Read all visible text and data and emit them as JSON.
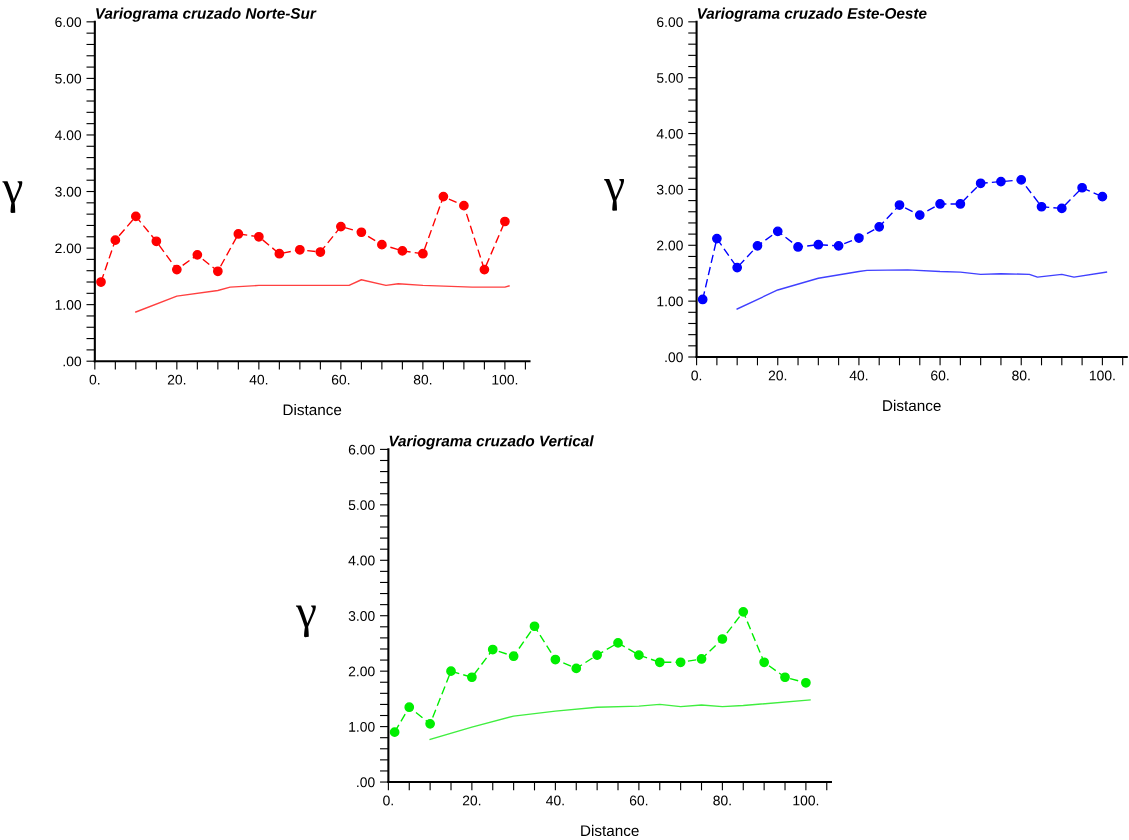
{
  "chart_data": [
    {
      "type": "line",
      "title": "Variograma cruzado Norte-Sur",
      "xlabel": "Distance",
      "ylabel": "γ",
      "xlim": [
        0,
        106
      ],
      "ylim": [
        0,
        6
      ],
      "grid": false,
      "legend": false,
      "xticks": [
        {
          "value": 0,
          "label": "0."
        },
        {
          "value": 5,
          "label": null
        },
        {
          "value": 10,
          "label": null
        },
        {
          "value": 15,
          "label": null
        },
        {
          "value": 20,
          "label": "20."
        },
        {
          "value": 25,
          "label": null
        },
        {
          "value": 30,
          "label": null
        },
        {
          "value": 35,
          "label": null
        },
        {
          "value": 40,
          "label": "40."
        },
        {
          "value": 45,
          "label": null
        },
        {
          "value": 50,
          "label": null
        },
        {
          "value": 55,
          "label": null
        },
        {
          "value": 60,
          "label": "60."
        },
        {
          "value": 65,
          "label": null
        },
        {
          "value": 70,
          "label": null
        },
        {
          "value": 75,
          "label": null
        },
        {
          "value": 80,
          "label": "80."
        },
        {
          "value": 85,
          "label": null
        },
        {
          "value": 90,
          "label": null
        },
        {
          "value": 95,
          "label": null
        },
        {
          "value": 100,
          "label": "100."
        },
        {
          "value": 105,
          "label": null
        }
      ],
      "yticks": [
        {
          "value": 0,
          "label": ".00"
        },
        {
          "value": 0.2,
          "label": null
        },
        {
          "value": 0.4,
          "label": null
        },
        {
          "value": 0.6,
          "label": null
        },
        {
          "value": 0.8,
          "label": null
        },
        {
          "value": 1,
          "label": "1.00"
        },
        {
          "value": 1.2,
          "label": null
        },
        {
          "value": 1.4,
          "label": null
        },
        {
          "value": 1.6,
          "label": null
        },
        {
          "value": 1.8,
          "label": null
        },
        {
          "value": 2,
          "label": "2.00"
        },
        {
          "value": 2.2,
          "label": null
        },
        {
          "value": 2.4,
          "label": null
        },
        {
          "value": 2.6,
          "label": null
        },
        {
          "value": 2.8,
          "label": null
        },
        {
          "value": 3,
          "label": "3.00"
        },
        {
          "value": 3.2,
          "label": null
        },
        {
          "value": 3.4,
          "label": null
        },
        {
          "value": 3.6,
          "label": null
        },
        {
          "value": 3.8,
          "label": null
        },
        {
          "value": 4,
          "label": "4.00"
        },
        {
          "value": 4.2,
          "label": null
        },
        {
          "value": 4.4,
          "label": null
        },
        {
          "value": 4.6,
          "label": null
        },
        {
          "value": 4.8,
          "label": null
        },
        {
          "value": 5,
          "label": "5.00"
        },
        {
          "value": 5.2,
          "label": null
        },
        {
          "value": 5.4,
          "label": null
        },
        {
          "value": 5.6,
          "label": null
        },
        {
          "value": 5.8,
          "label": null
        },
        {
          "value": 6,
          "label": "6.00"
        }
      ],
      "series": [
        {
          "marker": "circle",
          "line_style": "dashed",
          "color": "#ff0000",
          "x": [
            1.5,
            5,
            10,
            15,
            20,
            25,
            30,
            35,
            40,
            45,
            50,
            55,
            60,
            65,
            70,
            75,
            80,
            85,
            90,
            95,
            100
          ],
          "values": [
            1.4,
            2.14,
            2.56,
            2.12,
            1.62,
            1.88,
            1.59,
            2.25,
            2.2,
            1.9,
            1.97,
            1.93,
            2.38,
            2.28,
            2.06,
            1.95,
            1.9,
            2.91,
            2.75,
            1.62,
            2.47
          ]
        },
        {
          "marker": "none",
          "line_style": "solid",
          "color": "#ff4040",
          "x": [
            10,
            20,
            30,
            33,
            40,
            62,
            65,
            71,
            74,
            80,
            92,
            100,
            101
          ],
          "values": [
            0.87,
            1.15,
            1.25,
            1.31,
            1.34,
            1.34,
            1.44,
            1.34,
            1.37,
            1.34,
            1.31,
            1.31,
            1.33
          ]
        }
      ]
    },
    {
      "type": "line",
      "title": "Variograma cruzado Este-Oeste",
      "xlabel": "Distance",
      "ylabel": "γ",
      "xlim": [
        0,
        106
      ],
      "ylim": [
        0,
        6
      ],
      "grid": false,
      "legend": false,
      "xticks": [
        {
          "value": 0,
          "label": "0."
        },
        {
          "value": 5,
          "label": null
        },
        {
          "value": 10,
          "label": null
        },
        {
          "value": 15,
          "label": null
        },
        {
          "value": 20,
          "label": "20."
        },
        {
          "value": 25,
          "label": null
        },
        {
          "value": 30,
          "label": null
        },
        {
          "value": 35,
          "label": null
        },
        {
          "value": 40,
          "label": "40."
        },
        {
          "value": 45,
          "label": null
        },
        {
          "value": 50,
          "label": null
        },
        {
          "value": 55,
          "label": null
        },
        {
          "value": 60,
          "label": "60."
        },
        {
          "value": 65,
          "label": null
        },
        {
          "value": 70,
          "label": null
        },
        {
          "value": 75,
          "label": null
        },
        {
          "value": 80,
          "label": "80."
        },
        {
          "value": 85,
          "label": null
        },
        {
          "value": 90,
          "label": null
        },
        {
          "value": 95,
          "label": null
        },
        {
          "value": 100,
          "label": "100."
        },
        {
          "value": 105,
          "label": null
        }
      ],
      "yticks": [
        {
          "value": 0,
          "label": ".00"
        },
        {
          "value": 0.2,
          "label": null
        },
        {
          "value": 0.4,
          "label": null
        },
        {
          "value": 0.6,
          "label": null
        },
        {
          "value": 0.8,
          "label": null
        },
        {
          "value": 1,
          "label": "1.00"
        },
        {
          "value": 1.2,
          "label": null
        },
        {
          "value": 1.4,
          "label": null
        },
        {
          "value": 1.6,
          "label": null
        },
        {
          "value": 1.8,
          "label": null
        },
        {
          "value": 2,
          "label": "2.00"
        },
        {
          "value": 2.2,
          "label": null
        },
        {
          "value": 2.4,
          "label": null
        },
        {
          "value": 2.6,
          "label": null
        },
        {
          "value": 2.8,
          "label": null
        },
        {
          "value": 3,
          "label": "3.00"
        },
        {
          "value": 3.2,
          "label": null
        },
        {
          "value": 3.4,
          "label": null
        },
        {
          "value": 3.6,
          "label": null
        },
        {
          "value": 3.8,
          "label": null
        },
        {
          "value": 4,
          "label": "4.00"
        },
        {
          "value": 4.2,
          "label": null
        },
        {
          "value": 4.4,
          "label": null
        },
        {
          "value": 4.6,
          "label": null
        },
        {
          "value": 4.8,
          "label": null
        },
        {
          "value": 5,
          "label": "5.00"
        },
        {
          "value": 5.2,
          "label": null
        },
        {
          "value": 5.4,
          "label": null
        },
        {
          "value": 5.6,
          "label": null
        },
        {
          "value": 5.8,
          "label": null
        },
        {
          "value": 6,
          "label": "6.00"
        }
      ],
      "series": [
        {
          "marker": "circle",
          "line_style": "dashed",
          "color": "#0000ff",
          "x": [
            1.5,
            5,
            10,
            15,
            20,
            25,
            30,
            35,
            40,
            45,
            50,
            55,
            60,
            65,
            70,
            75,
            80,
            85,
            90,
            95,
            100
          ],
          "values": [
            1.03,
            2.12,
            1.6,
            1.99,
            2.25,
            1.97,
            2.01,
            1.99,
            2.13,
            2.33,
            2.72,
            2.54,
            2.74,
            2.74,
            3.11,
            3.14,
            3.17,
            2.69,
            2.66,
            3.03,
            2.87
          ]
        },
        {
          "marker": "none",
          "line_style": "solid",
          "color": "#4040ff",
          "x": [
            10,
            20,
            30,
            40,
            42,
            52,
            60,
            65,
            70,
            75,
            82,
            84,
            90,
            93,
            101
          ],
          "values": [
            0.86,
            1.2,
            1.41,
            1.53,
            1.55,
            1.56,
            1.53,
            1.52,
            1.48,
            1.49,
            1.48,
            1.43,
            1.48,
            1.43,
            1.52
          ]
        }
      ]
    },
    {
      "type": "line",
      "title": "Variograma cruzado Vertical",
      "xlabel": "Distance",
      "ylabel": "γ",
      "xlim": [
        0,
        106
      ],
      "ylim": [
        0,
        6
      ],
      "grid": false,
      "legend": false,
      "xticks": [
        {
          "value": 0,
          "label": "0."
        },
        {
          "value": 5,
          "label": null
        },
        {
          "value": 10,
          "label": null
        },
        {
          "value": 15,
          "label": null
        },
        {
          "value": 20,
          "label": "20."
        },
        {
          "value": 25,
          "label": null
        },
        {
          "value": 30,
          "label": null
        },
        {
          "value": 35,
          "label": null
        },
        {
          "value": 40,
          "label": "40."
        },
        {
          "value": 45,
          "label": null
        },
        {
          "value": 50,
          "label": null
        },
        {
          "value": 55,
          "label": null
        },
        {
          "value": 60,
          "label": "60."
        },
        {
          "value": 65,
          "label": null
        },
        {
          "value": 70,
          "label": null
        },
        {
          "value": 75,
          "label": null
        },
        {
          "value": 80,
          "label": "80."
        },
        {
          "value": 85,
          "label": null
        },
        {
          "value": 90,
          "label": null
        },
        {
          "value": 95,
          "label": null
        },
        {
          "value": 100,
          "label": "100."
        },
        {
          "value": 105,
          "label": null
        }
      ],
      "yticks": [
        {
          "value": 0,
          "label": ".00"
        },
        {
          "value": 0.2,
          "label": null
        },
        {
          "value": 0.4,
          "label": null
        },
        {
          "value": 0.6,
          "label": null
        },
        {
          "value": 0.8,
          "label": null
        },
        {
          "value": 1,
          "label": "1.00"
        },
        {
          "value": 1.2,
          "label": null
        },
        {
          "value": 1.4,
          "label": null
        },
        {
          "value": 1.6,
          "label": null
        },
        {
          "value": 1.8,
          "label": null
        },
        {
          "value": 2,
          "label": "2.00"
        },
        {
          "value": 2.2,
          "label": null
        },
        {
          "value": 2.4,
          "label": null
        },
        {
          "value": 2.6,
          "label": null
        },
        {
          "value": 2.8,
          "label": null
        },
        {
          "value": 3,
          "label": "3.00"
        },
        {
          "value": 3.2,
          "label": null
        },
        {
          "value": 3.4,
          "label": null
        },
        {
          "value": 3.6,
          "label": null
        },
        {
          "value": 3.8,
          "label": null
        },
        {
          "value": 4,
          "label": "4.00"
        },
        {
          "value": 4.2,
          "label": null
        },
        {
          "value": 4.4,
          "label": null
        },
        {
          "value": 4.6,
          "label": null
        },
        {
          "value": 4.8,
          "label": null
        },
        {
          "value": 5,
          "label": "5.00"
        },
        {
          "value": 5.2,
          "label": null
        },
        {
          "value": 5.4,
          "label": null
        },
        {
          "value": 5.6,
          "label": null
        },
        {
          "value": 5.8,
          "label": null
        },
        {
          "value": 6,
          "label": "6.00"
        }
      ],
      "series": [
        {
          "marker": "circle",
          "line_style": "dashed",
          "color": "#00ee00",
          "x": [
            1.5,
            5,
            10,
            15,
            20,
            25,
            30,
            35,
            40,
            45,
            50,
            55,
            60,
            65,
            70,
            75,
            80,
            85,
            90,
            95,
            100
          ],
          "values": [
            0.9,
            1.35,
            1.05,
            2.0,
            1.89,
            2.39,
            2.27,
            2.81,
            2.21,
            2.05,
            2.29,
            2.51,
            2.29,
            2.16,
            2.16,
            2.22,
            2.58,
            3.07,
            2.16,
            1.89,
            1.79
          ]
        },
        {
          "marker": "none",
          "line_style": "solid",
          "color": "#40ee40",
          "x": [
            10,
            20,
            30,
            40,
            50,
            60,
            65,
            70,
            75,
            80,
            85,
            101
          ],
          "values": [
            0.77,
            0.99,
            1.19,
            1.28,
            1.35,
            1.37,
            1.4,
            1.36,
            1.39,
            1.36,
            1.38,
            1.48
          ]
        }
      ]
    }
  ]
}
